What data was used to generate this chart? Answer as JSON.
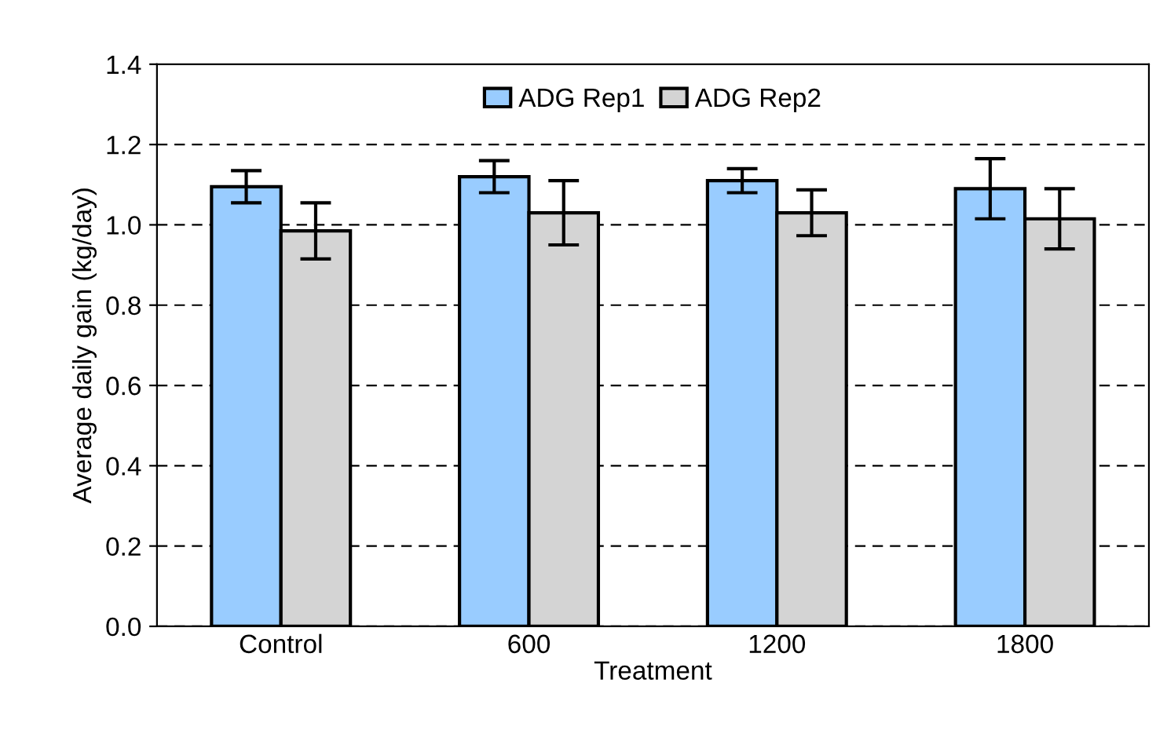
{
  "chart_data": {
    "type": "bar",
    "xlabel": "Treatment",
    "ylabel": "Average daily gain (kg/day)",
    "categories": [
      "Control",
      "600",
      "1200",
      "1800"
    ],
    "series": [
      {
        "name": "ADG Rep1",
        "color": "#99ccff",
        "values": [
          1.095,
          1.12,
          1.11,
          1.09
        ],
        "errors": [
          0.04,
          0.04,
          0.03,
          0.075
        ]
      },
      {
        "name": "ADG Rep2",
        "color": "#d4d4d4",
        "values": [
          0.985,
          1.03,
          1.03,
          1.015
        ],
        "errors": [
          0.07,
          0.08,
          0.057,
          0.075
        ]
      }
    ],
    "ylim": [
      0,
      1.4
    ],
    "yticks": [
      {
        "value": 0,
        "label": "0.0"
      },
      {
        "value": 0.2,
        "label": "0.2"
      },
      {
        "value": 0.4,
        "label": "0.4"
      },
      {
        "value": 0.6,
        "label": "0.6"
      },
      {
        "value": 0.8,
        "label": "0.8"
      },
      {
        "value": 1.0,
        "label": "1.0"
      },
      {
        "value": 1.2,
        "label": "1.2"
      },
      {
        "value": 1.4,
        "label": "1.4"
      }
    ],
    "grid": "y",
    "legend": "top"
  }
}
